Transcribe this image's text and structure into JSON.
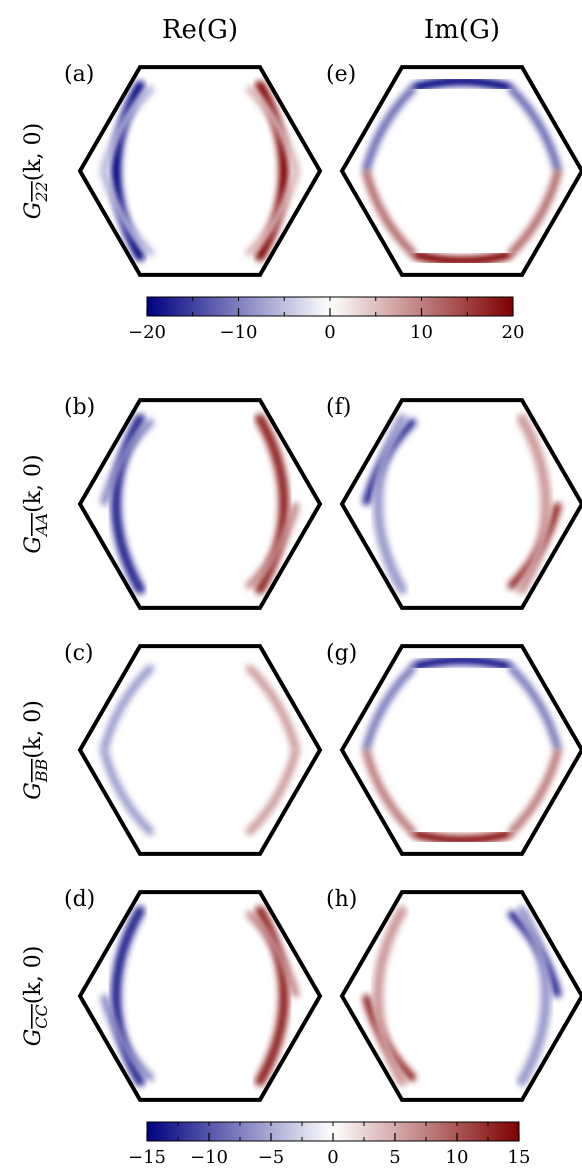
{
  "figure": {
    "column_titles": [
      "Re(G)",
      "Im(G)"
    ],
    "row_labels": [
      "G_{2̅2̅}(k, 0)",
      "G_{A̅A̅}(k, 0)",
      "G_{B̅B̅}(k, 0)",
      "G_{C̅C̅}(k, 0)"
    ],
    "row_label_parts": [
      {
        "main": "G",
        "sub": "22",
        "arg": "(k, 0)"
      },
      {
        "main": "G",
        "sub": "AA",
        "arg": "(k, 0)"
      },
      {
        "main": "G",
        "sub": "BB",
        "arg": "(k, 0)"
      },
      {
        "main": "G",
        "sub": "CC",
        "arg": "(k, 0)"
      }
    ],
    "panel_labels": [
      "(a)",
      "(e)",
      "(b)",
      "(f)",
      "(c)",
      "(g)",
      "(d)",
      "(h)"
    ],
    "colors": {
      "negative": "#00007f",
      "zero": "#ffffff",
      "positive": "#7f0000",
      "outline": "#000000"
    }
  },
  "chart_data": [
    {
      "type": "heatmap",
      "panel": "(a)",
      "column": "Re(G)",
      "row": "G_{2̅2̅}(k, 0)",
      "colormap": "seismic",
      "vmin": -20,
      "vmax": 20,
      "domain": "hexagonal Brillouin zone",
      "features": [
        {
          "edge": "left",
          "sign": "negative",
          "peak": -20
        },
        {
          "edge": "upper-left",
          "sign": "negative",
          "peak": -6
        },
        {
          "edge": "lower-left",
          "sign": "negative",
          "peak": -6
        },
        {
          "edge": "right",
          "sign": "positive",
          "peak": 20
        },
        {
          "edge": "upper-right",
          "sign": "positive",
          "peak": 6
        },
        {
          "edge": "lower-right",
          "sign": "positive",
          "peak": 6
        }
      ]
    },
    {
      "type": "heatmap",
      "panel": "(e)",
      "column": "Im(G)",
      "row": "G_{2̅2̅}(k, 0)",
      "colormap": "seismic",
      "vmin": -20,
      "vmax": 20,
      "domain": "hexagonal Brillouin zone",
      "features": [
        {
          "edge": "top",
          "sign": "negative",
          "peak": -20
        },
        {
          "edge": "upper-left",
          "sign": "negative",
          "peak": -12
        },
        {
          "edge": "upper-right",
          "sign": "negative",
          "peak": -12
        },
        {
          "edge": "bottom",
          "sign": "positive",
          "peak": 20
        },
        {
          "edge": "lower-left",
          "sign": "positive",
          "peak": 12
        },
        {
          "edge": "lower-right",
          "sign": "positive",
          "peak": 12
        }
      ]
    },
    {
      "type": "heatmap",
      "panel": "(b)",
      "column": "Re(G)",
      "row": "G_{A̅A̅}(k, 0)",
      "colormap": "seismic",
      "vmin": -15,
      "vmax": 15,
      "domain": "hexagonal Brillouin zone",
      "features": [
        {
          "edge": "left",
          "sign": "negative",
          "peak": -13
        },
        {
          "edge": "upper-left",
          "sign": "negative",
          "peak": -7
        },
        {
          "edge": "right",
          "sign": "positive",
          "peak": 13
        },
        {
          "edge": "lower-right",
          "sign": "positive",
          "peak": 7
        }
      ]
    },
    {
      "type": "heatmap",
      "panel": "(f)",
      "column": "Im(G)",
      "row": "G_{A̅A̅}(k, 0)",
      "colormap": "seismic",
      "vmin": -15,
      "vmax": 15,
      "domain": "hexagonal Brillouin zone",
      "features": [
        {
          "edge": "upper-left",
          "sign": "negative",
          "peak": -13
        },
        {
          "edge": "left",
          "sign": "negative",
          "peak": -6
        },
        {
          "edge": "lower-right",
          "sign": "positive",
          "peak": 13
        },
        {
          "edge": "right",
          "sign": "positive",
          "peak": 6
        }
      ]
    },
    {
      "type": "heatmap",
      "panel": "(c)",
      "column": "Re(G)",
      "row": "G_{B̅B̅}(k, 0)",
      "colormap": "seismic",
      "vmin": -15,
      "vmax": 15,
      "domain": "hexagonal Brillouin zone",
      "features": [
        {
          "edge": "upper-left",
          "sign": "negative",
          "peak": -6
        },
        {
          "edge": "lower-left",
          "sign": "negative",
          "peak": -6
        },
        {
          "edge": "upper-right",
          "sign": "positive",
          "peak": 6
        },
        {
          "edge": "lower-right",
          "sign": "positive",
          "peak": 6
        }
      ]
    },
    {
      "type": "heatmap",
      "panel": "(g)",
      "column": "Im(G)",
      "row": "G_{B̅B̅}(k, 0)",
      "colormap": "seismic",
      "vmin": -15,
      "vmax": 15,
      "domain": "hexagonal Brillouin zone",
      "features": [
        {
          "edge": "top",
          "sign": "negative",
          "peak": -14
        },
        {
          "edge": "upper-left",
          "sign": "negative",
          "peak": -8
        },
        {
          "edge": "upper-right",
          "sign": "negative",
          "peak": -8
        },
        {
          "edge": "bottom",
          "sign": "positive",
          "peak": 14
        },
        {
          "edge": "lower-left",
          "sign": "positive",
          "peak": 8
        },
        {
          "edge": "lower-right",
          "sign": "positive",
          "peak": 8
        }
      ]
    },
    {
      "type": "heatmap",
      "panel": "(d)",
      "column": "Re(G)",
      "row": "G_{C̅C̅}(k, 0)",
      "colormap": "seismic",
      "vmin": -15,
      "vmax": 15,
      "domain": "hexagonal Brillouin zone",
      "features": [
        {
          "edge": "left",
          "sign": "negative",
          "peak": -13
        },
        {
          "edge": "lower-left",
          "sign": "negative",
          "peak": -7
        },
        {
          "edge": "right",
          "sign": "positive",
          "peak": 13
        },
        {
          "edge": "upper-right",
          "sign": "positive",
          "peak": 7
        }
      ]
    },
    {
      "type": "heatmap",
      "panel": "(h)",
      "column": "Im(G)",
      "row": "G_{C̅C̅}(k, 0)",
      "colormap": "seismic",
      "vmin": -15,
      "vmax": 15,
      "domain": "hexagonal Brillouin zone",
      "features": [
        {
          "edge": "upper-right",
          "sign": "negative",
          "peak": -13
        },
        {
          "edge": "right",
          "sign": "negative",
          "peak": -6
        },
        {
          "edge": "lower-left",
          "sign": "positive",
          "peak": 13
        },
        {
          "edge": "left",
          "sign": "positive",
          "peak": 6
        }
      ]
    }
  ],
  "colorbars": [
    {
      "vmin": -20,
      "vmax": 20,
      "ticks": [
        -20,
        -10,
        0,
        10,
        20
      ],
      "tick_labels": [
        "−20",
        "−10",
        "0",
        "10",
        "20"
      ],
      "minor_step": 5
    },
    {
      "vmin": -15,
      "vmax": 15,
      "ticks": [
        -15,
        -10,
        -5,
        0,
        5,
        10,
        15
      ],
      "tick_labels": [
        "−15",
        "−10",
        "−5",
        "0",
        "5",
        "10",
        "15"
      ],
      "minor_step": 2.5
    }
  ]
}
